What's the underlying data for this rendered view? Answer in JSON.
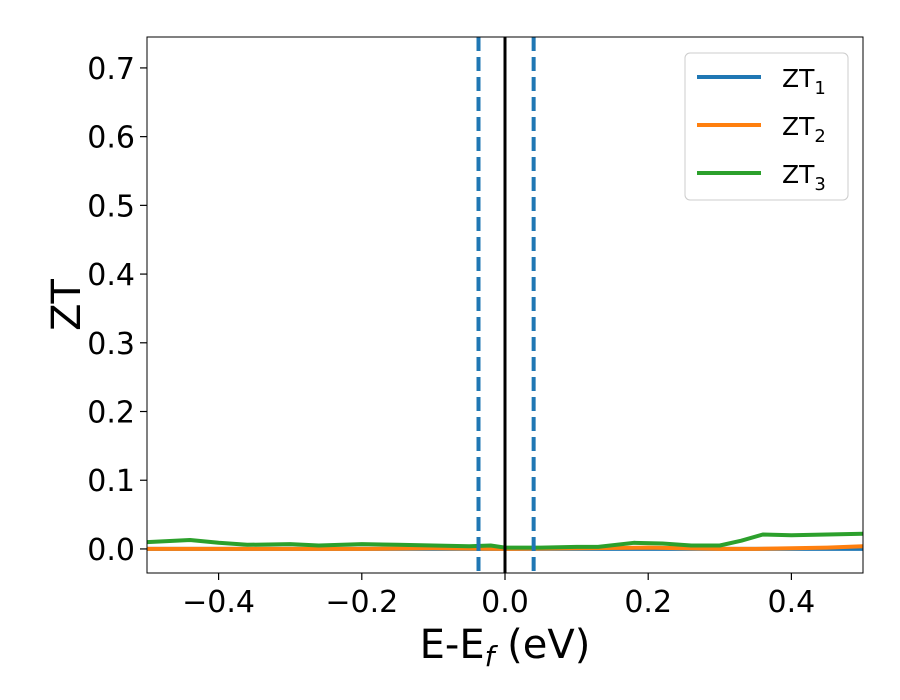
{
  "chart_data": {
    "type": "line",
    "xlabel": "E-E",
    "xlabel_sub": "f",
    "xlabel_unit": " (eV)",
    "ylabel": "ZT",
    "xlim": [
      -0.5,
      0.5
    ],
    "ylim": [
      -0.035,
      0.745
    ],
    "xticks": [
      -0.4,
      -0.2,
      0.0,
      0.2,
      0.4
    ],
    "xtick_labels": [
      "−0.4",
      "−0.2",
      "0.0",
      "0.2",
      "0.4"
    ],
    "yticks": [
      0.0,
      0.1,
      0.2,
      0.3,
      0.4,
      0.5,
      0.6,
      0.7
    ],
    "ytick_labels": [
      "0.0",
      "0.1",
      "0.2",
      "0.3",
      "0.4",
      "0.5",
      "0.6",
      "0.7"
    ],
    "grid": false,
    "legend_position": "top-right",
    "vlines": [
      {
        "x": 0.0,
        "color": "#000000",
        "style": "solid"
      },
      {
        "x": -0.037,
        "color": "#1f77b4",
        "style": "dashed"
      },
      {
        "x": 0.04,
        "color": "#1f77b4",
        "style": "dashed"
      }
    ],
    "series": [
      {
        "name": "ZT",
        "name_sub": "1",
        "color": "#1f77b4",
        "x": [
          -0.5,
          -0.4,
          -0.3,
          -0.2,
          -0.1,
          -0.05,
          0.0,
          0.05,
          0.1,
          0.2,
          0.3,
          0.4,
          0.45,
          0.5
        ],
        "y": [
          0.0,
          0.0,
          0.0,
          0.0,
          0.0,
          0.0,
          0.0,
          0.0,
          0.0,
          0.0,
          0.0,
          0.0,
          0.0,
          0.0
        ]
      },
      {
        "name": "ZT",
        "name_sub": "2",
        "color": "#ff7f0e",
        "x": [
          -0.5,
          -0.4,
          -0.3,
          -0.2,
          -0.1,
          0.0,
          0.1,
          0.2,
          0.3,
          0.35,
          0.4,
          0.45,
          0.5
        ],
        "y": [
          0.0,
          0.0,
          0.0,
          0.0,
          0.001,
          0.0,
          0.001,
          0.002,
          0.0,
          0.0,
          0.001,
          0.002,
          0.004
        ]
      },
      {
        "name": "ZT",
        "name_sub": "3",
        "color": "#2ca02c",
        "x": [
          -0.5,
          -0.44,
          -0.4,
          -0.36,
          -0.3,
          -0.26,
          -0.2,
          -0.15,
          -0.1,
          -0.05,
          -0.02,
          0.0,
          0.05,
          0.1,
          0.13,
          0.18,
          0.22,
          0.26,
          0.3,
          0.33,
          0.36,
          0.4,
          0.45,
          0.5
        ],
        "y": [
          0.01,
          0.013,
          0.009,
          0.006,
          0.007,
          0.005,
          0.007,
          0.006,
          0.005,
          0.004,
          0.005,
          0.002,
          0.002,
          0.003,
          0.003,
          0.009,
          0.008,
          0.005,
          0.005,
          0.012,
          0.021,
          0.02,
          0.021,
          0.022
        ]
      }
    ]
  }
}
